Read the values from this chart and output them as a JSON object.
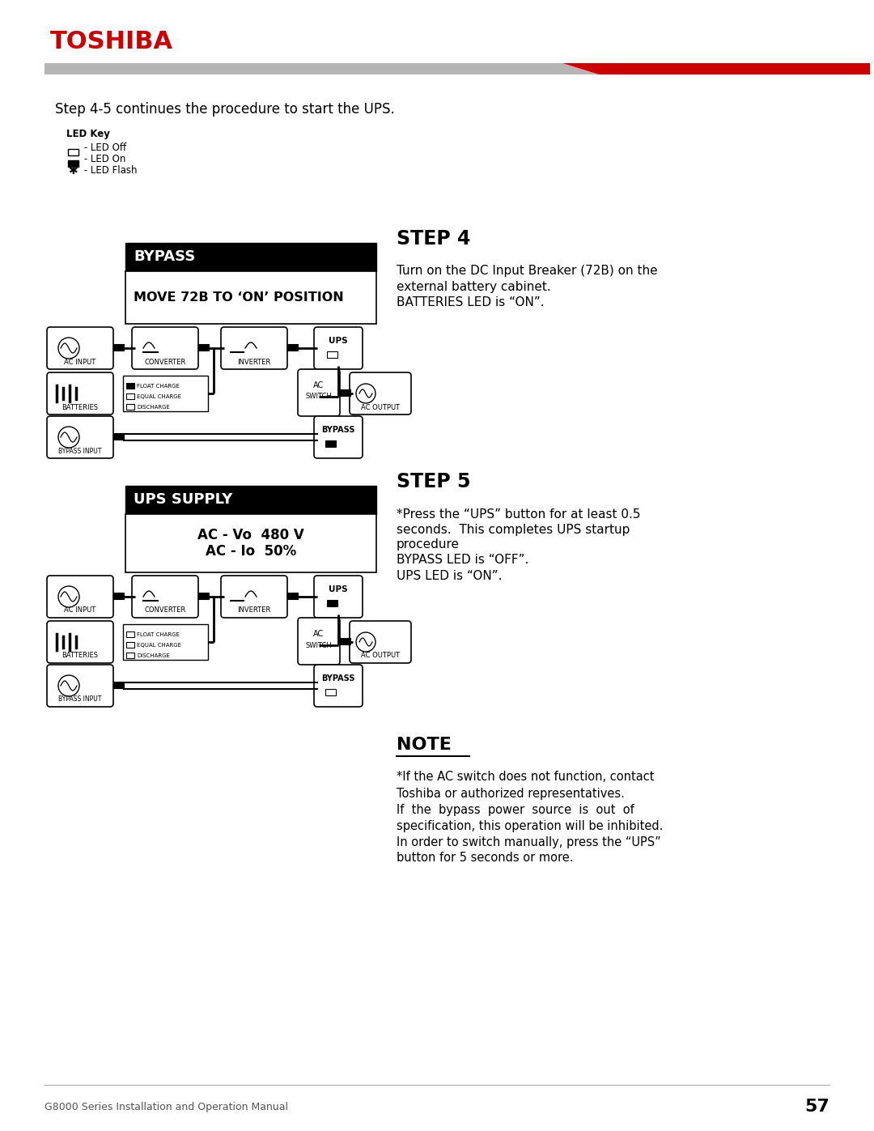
{
  "page_bg": "#ffffff",
  "toshiba_color": "#cc0000",
  "title_text": "Step 4-5 continues the procedure to start the UPS.",
  "step4_title": "STEP 4",
  "step4_lines": [
    "Turn on the DC Input Breaker (72B) on the",
    "external battery cabinet.",
    "BATTERIES LED is “ON”."
  ],
  "step5_title": "STEP 5",
  "step5_lines": [
    "*Press the “UPS” button for at least 0.5",
    "seconds.  This completes UPS startup",
    "procedure",
    "BYPASS LED is “OFF”.",
    "UPS LED is “ON”."
  ],
  "note_title": "NOTE",
  "note_lines": [
    "*If the AC switch does not function, contact",
    "Toshiba or authorized representatives.",
    "If  the  bypass  power  source  is  out  of",
    "specification, this operation will be inhibited.",
    "In order to switch manually, press the “UPS”",
    "button for 5 seconds or more."
  ],
  "bypass_label": "BYPASS",
  "bypass_msg": "MOVE 72B TO ‘ON’ POSITION",
  "ups_supply_label": "UPS SUPPLY",
  "ups_supply_msg1": "AC - Vo  480 V",
  "ups_supply_msg2": "AC - Io  50%",
  "footer_text": "G8000 Series Installation and Operation Manual",
  "page_number": "57",
  "led_key_title": "LED Key",
  "led_off_text": " - LED Off",
  "led_on_text": " - LED On",
  "led_flash_text": " - LED Flash"
}
